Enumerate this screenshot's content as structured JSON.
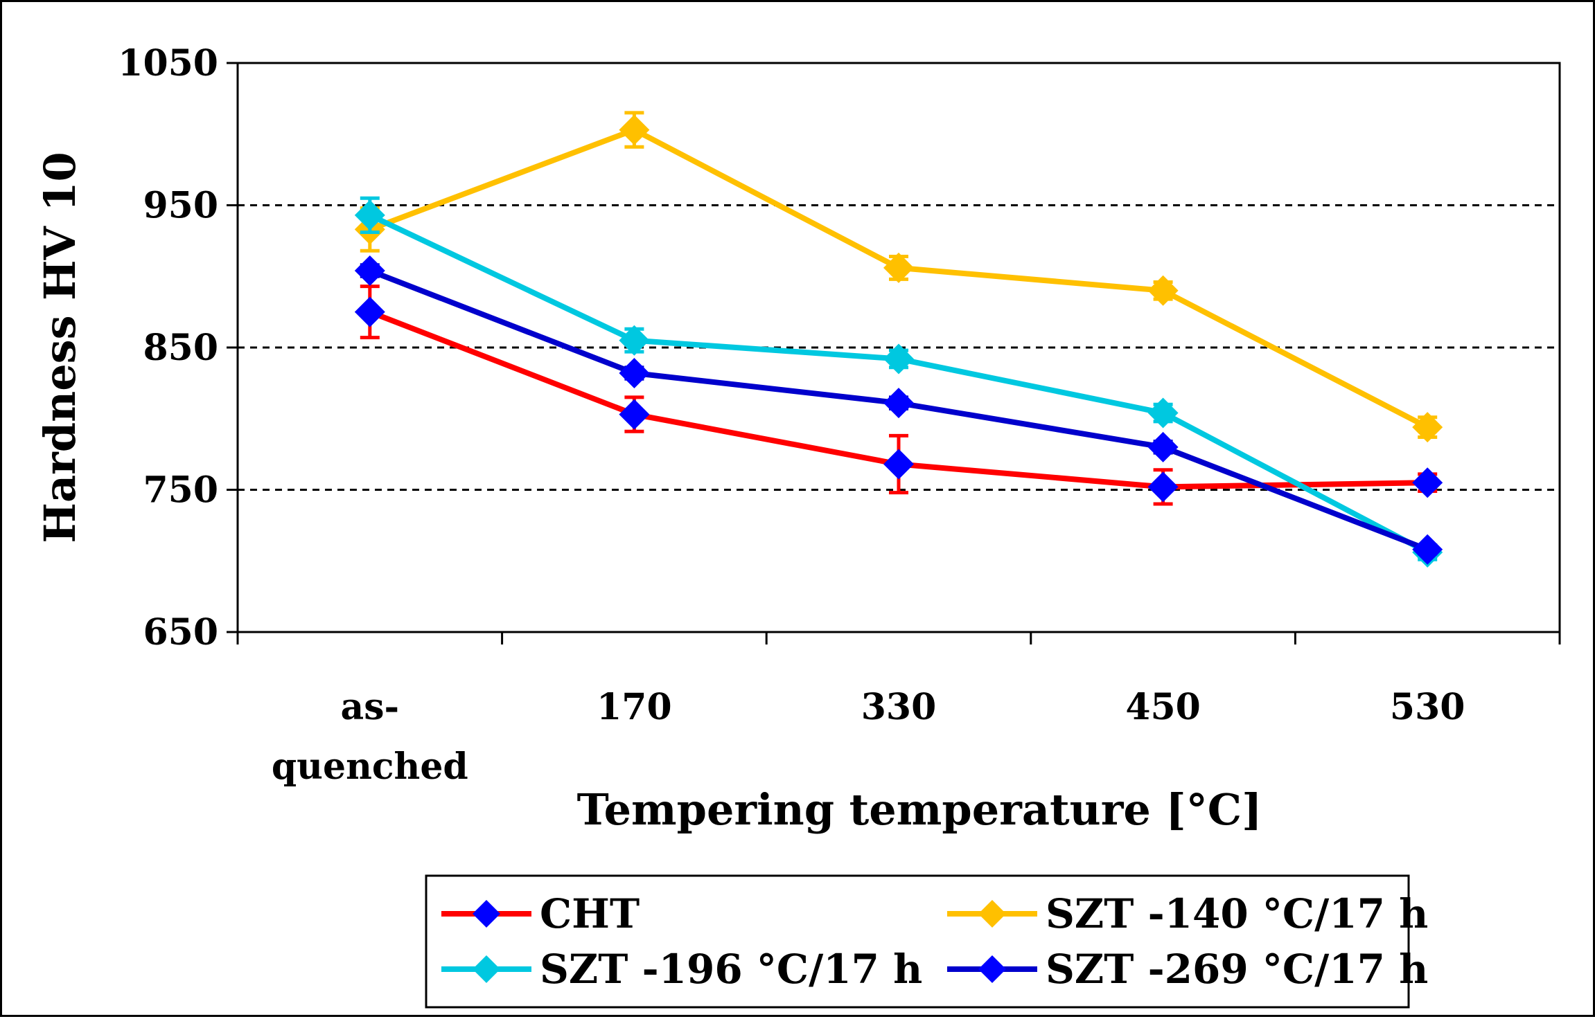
{
  "chart_data": {
    "type": "line",
    "title": "",
    "xlabel": "Tempering temperature [°C]",
    "ylabel": "Hardness HV 10",
    "categories": [
      [
        "as-",
        "quenched"
      ],
      [
        "170"
      ],
      [
        "330"
      ],
      [
        "450"
      ],
      [
        "530"
      ]
    ],
    "ylim": [
      650,
      1050
    ],
    "yticks": [
      650,
      750,
      850,
      950,
      1050
    ],
    "gridlines": [
      750,
      850,
      950
    ],
    "series": [
      {
        "name": "CHT",
        "line_color": "#ff0000",
        "marker_color": "#0000ff",
        "errbar_color": "#ff0000",
        "values": [
          875,
          803,
          768,
          752,
          755
        ],
        "errors": [
          18,
          12,
          20,
          12,
          6
        ]
      },
      {
        "name": "SZT -140 °C/17 h",
        "line_color": "#ffc000",
        "marker_color": "#ffc000",
        "errbar_color": "#ffc000",
        "values": [
          933,
          1003,
          906,
          890,
          794
        ],
        "errors": [
          15,
          12,
          8,
          6,
          7
        ]
      },
      {
        "name": "SZT -196 °C/17 h",
        "line_color": "#00c8e0",
        "marker_color": "#00c8e0",
        "errbar_color": "#00c8e0",
        "values": [
          943,
          855,
          842,
          804,
          706
        ],
        "errors": [
          12,
          8,
          6,
          6,
          5
        ]
      },
      {
        "name": "SZT -269 °C/17 h",
        "line_color": "#0000cc",
        "marker_color": "#0000ff",
        "errbar_color": "#0000cc",
        "values": [
          904,
          832,
          811,
          780,
          708
        ],
        "errors": [
          4,
          4,
          4,
          4,
          3
        ]
      }
    ],
    "legend_placement": "bottom"
  }
}
